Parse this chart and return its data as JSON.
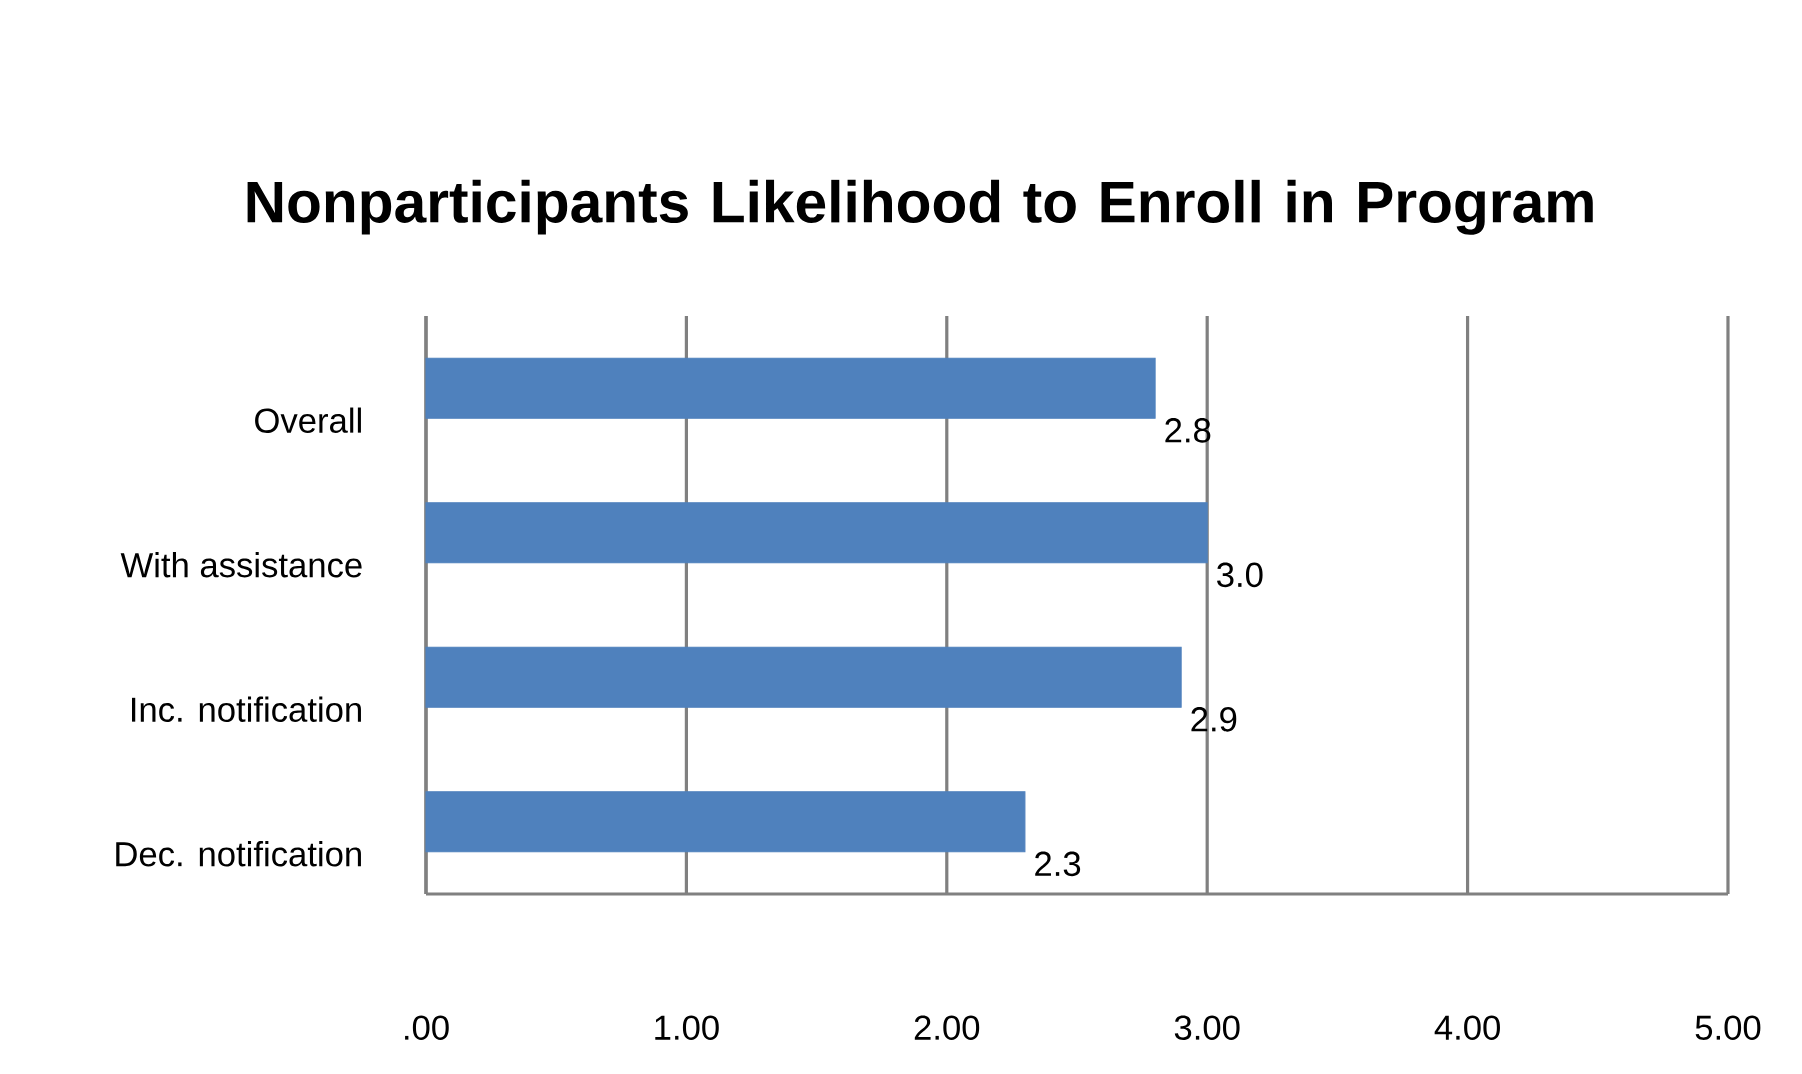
{
  "chart_data": {
    "type": "bar",
    "orientation": "horizontal",
    "title": "Nonparticipants Likelihood to Enroll in Program",
    "categories": [
      "Overall",
      "With assistance",
      "Inc. notification",
      "Dec. notification"
    ],
    "values": [
      2.8,
      3.0,
      2.9,
      2.3
    ],
    "value_labels": [
      "2.8",
      "3.0",
      "2.9",
      "2.3"
    ],
    "color": "#4f81bd",
    "xlim": [
      0,
      5
    ],
    "xticks": [
      {
        "value": 0,
        "label": ".00"
      },
      {
        "value": 1,
        "label": "1.00"
      },
      {
        "value": 2,
        "label": "2.00"
      },
      {
        "value": 3,
        "label": "3.00"
      },
      {
        "value": 4,
        "label": "4.00"
      },
      {
        "value": 5,
        "label": "5.00"
      }
    ],
    "grid": "x"
  }
}
